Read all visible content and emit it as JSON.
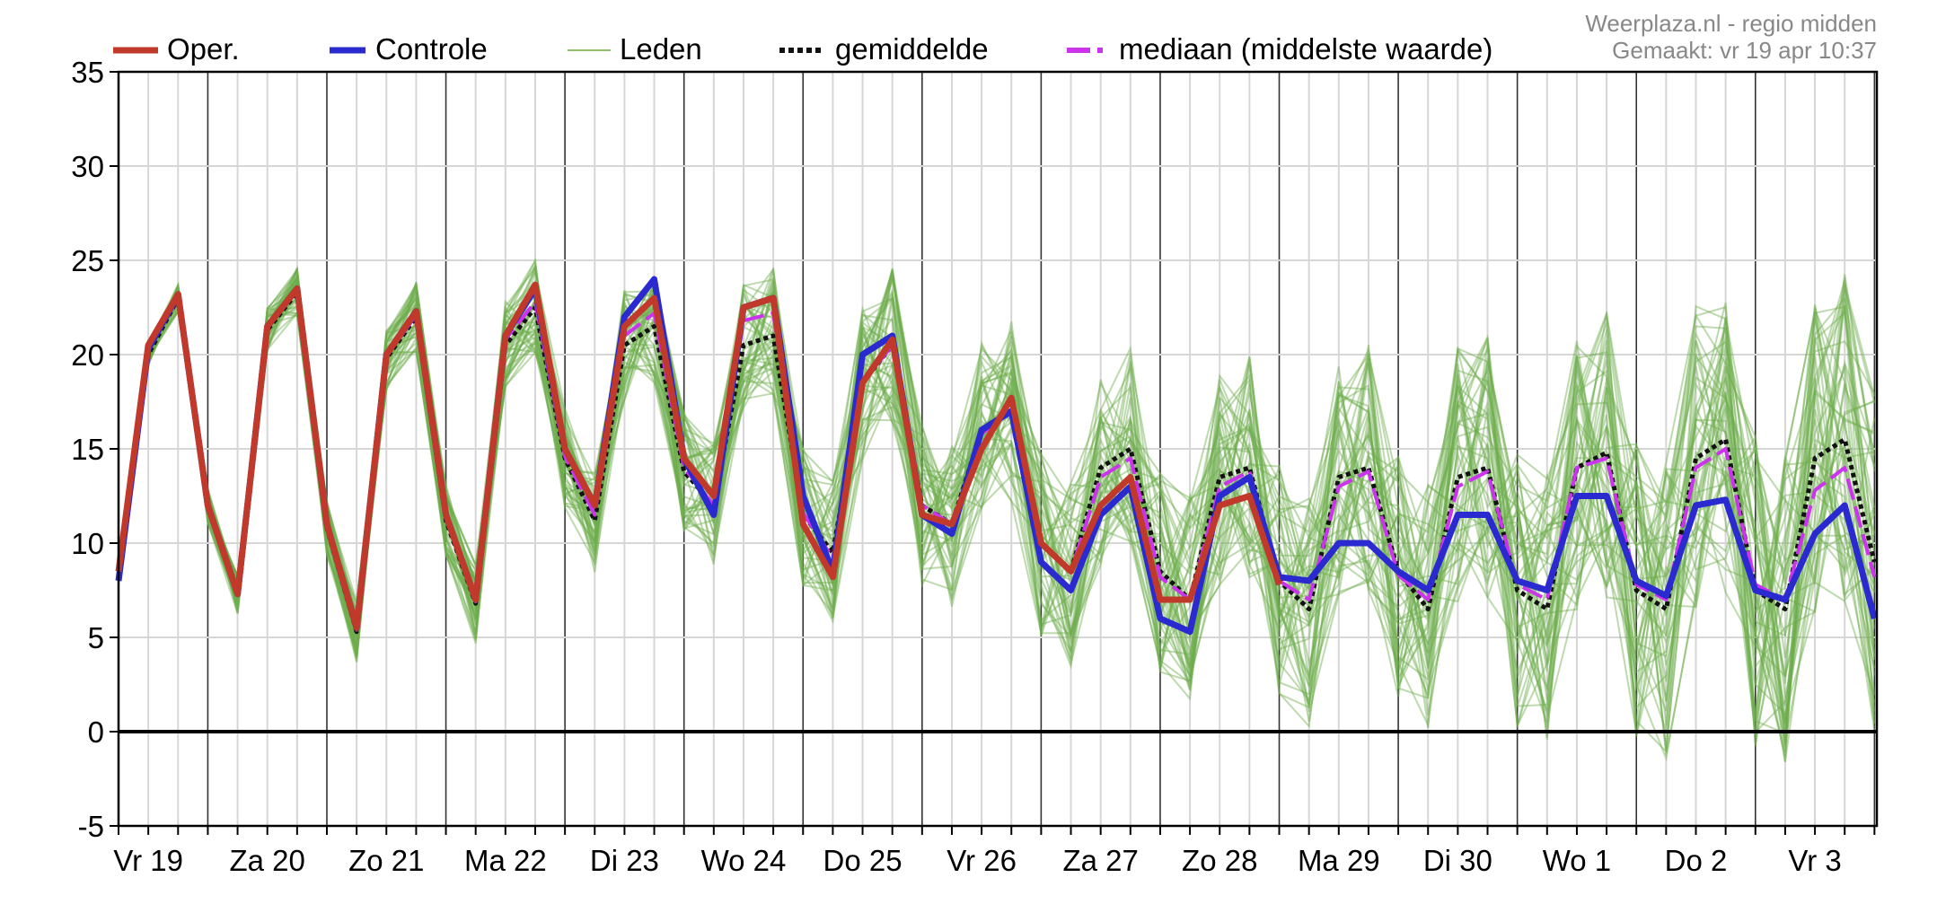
{
  "header": {
    "credit_line1": "Weerplaza.nl - regio midden",
    "credit_line2": "Gemaakt: vr 19 apr 10:37"
  },
  "legend": {
    "placement": "top",
    "items": [
      {
        "label": "Oper.",
        "style": "thick-solid",
        "color": "#c0392b"
      },
      {
        "label": "Controle",
        "style": "thick-solid",
        "color": "#2a2ad0"
      },
      {
        "label": "Leden",
        "style": "thin-solid",
        "color": "#6cae4b"
      },
      {
        "label": "gemiddelde",
        "style": "dotted",
        "color": "#111111"
      },
      {
        "label": "mediaan (middelste waarde)",
        "style": "dashed",
        "color": "#cc33ee"
      }
    ]
  },
  "chart_data": {
    "type": "line",
    "title": "",
    "xlabel": "",
    "ylabel": "",
    "ylim": [
      -5,
      35
    ],
    "y_ticks": [
      35,
      30,
      25,
      20,
      15,
      10,
      5,
      0,
      -5
    ],
    "x_ticks": [
      "Vr 19",
      "Za 20",
      "Zo 21",
      "Ma 22",
      "Di 23",
      "Wo 24",
      "Do 25",
      "Vr 26",
      "Za 27",
      "Zo 28",
      "Ma 29",
      "Di 30",
      "Wo 1",
      "Do 2",
      "Vr 3"
    ],
    "grid": true,
    "zero_line": true,
    "steps_per_day": 4,
    "series": [
      {
        "name": "Oper.",
        "color": "#c0392b",
        "values": [
          8.5,
          20.5,
          23.2,
          12,
          7.3,
          21.5,
          23.5,
          11,
          5.5,
          20,
          22.3,
          11.5,
          7,
          21,
          23.7,
          15,
          12,
          21.5,
          23,
          14.5,
          12.5,
          22.5,
          23,
          11,
          8.2,
          18.5,
          20.8,
          11.5,
          11,
          15,
          17.7,
          10,
          8.5,
          12,
          13.5,
          7,
          7,
          12,
          12.5,
          7.8
        ]
      },
      {
        "name": "Controle",
        "color": "#2a2ad0",
        "values": [
          8,
          20.3,
          23.2,
          12,
          7.3,
          21.5,
          23.5,
          11,
          5.5,
          20,
          22.3,
          11.5,
          7,
          21,
          23.5,
          15,
          12,
          22,
          24,
          14.5,
          11.5,
          22.5,
          23,
          12.5,
          8.5,
          20,
          21,
          11.5,
          10.5,
          16,
          17,
          9,
          7.5,
          11.5,
          13,
          6,
          5.3,
          12.5,
          13.5,
          8.2,
          8,
          10,
          10,
          8.5,
          7.5,
          11.5,
          11.5,
          8,
          7.5,
          12.5,
          12.5,
          8,
          7.2,
          12,
          12.3,
          7.5,
          7,
          10.5,
          12,
          6
        ]
      },
      {
        "name": "gemiddelde",
        "color": "#111111",
        "values": [
          8.3,
          20,
          23,
          12,
          7.3,
          21.3,
          23.3,
          10.8,
          5.3,
          19.8,
          22,
          11.2,
          6.8,
          20.5,
          22.5,
          14.5,
          11.2,
          20.5,
          21.5,
          13.8,
          12,
          20.5,
          21,
          11.5,
          9.5,
          18.5,
          20.5,
          12,
          11,
          16,
          17,
          10,
          8.5,
          14,
          15,
          8.5,
          7,
          13.5,
          14,
          8,
          6.5,
          13.5,
          14,
          8.5,
          6.5,
          13.5,
          14,
          7.5,
          6.5,
          14,
          14.8,
          7.5,
          6.5,
          14.5,
          15.5,
          7.5,
          6.5,
          14.5,
          15.5,
          9
        ]
      },
      {
        "name": "mediaan (middelste waarde)",
        "color": "#cc33ee",
        "values": [
          8.3,
          20.2,
          23,
          12,
          7.3,
          21.4,
          23.4,
          10.9,
          5.4,
          19.9,
          22.1,
          11.3,
          6.9,
          20.8,
          22.8,
          14.6,
          11.5,
          21,
          22.2,
          14,
          12,
          21.8,
          22.2,
          11.6,
          9.2,
          18.5,
          20.5,
          12,
          11,
          15.8,
          17,
          10,
          8.5,
          13.5,
          14.5,
          8.2,
          7,
          13,
          13.8,
          8,
          7,
          13,
          13.8,
          8.3,
          7,
          13,
          13.8,
          7.8,
          7,
          14,
          14.5,
          7.8,
          7,
          14,
          15,
          7.8,
          7,
          12.8,
          14,
          8.2
        ]
      }
    ]
  }
}
